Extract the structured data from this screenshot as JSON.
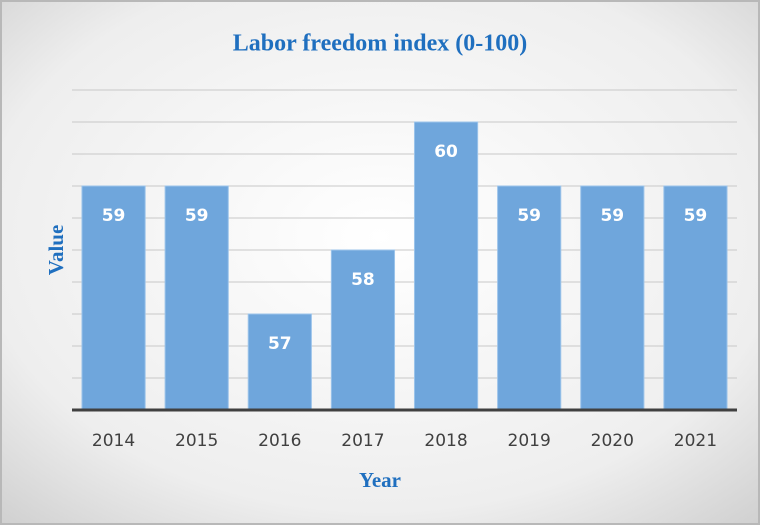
{
  "chart_data": {
    "type": "bar",
    "title": "Labor freedom index (0-100)",
    "x_label": "Year",
    "y_label": "Value",
    "categories": [
      "2014",
      "2015",
      "2016",
      "2017",
      "2018",
      "2019",
      "2020",
      "2021"
    ],
    "values": [
      59,
      59,
      57,
      58,
      60,
      59,
      59,
      59
    ],
    "color": "#6fa6dc",
    "ylim": [
      55.5,
      60.5
    ],
    "yticks": [
      56,
      56.5,
      57,
      57.5,
      58,
      58.5,
      59,
      59.5,
      60,
      60.5
    ],
    "show_ytick_labels": false,
    "data_labels": true,
    "grid": true
  }
}
